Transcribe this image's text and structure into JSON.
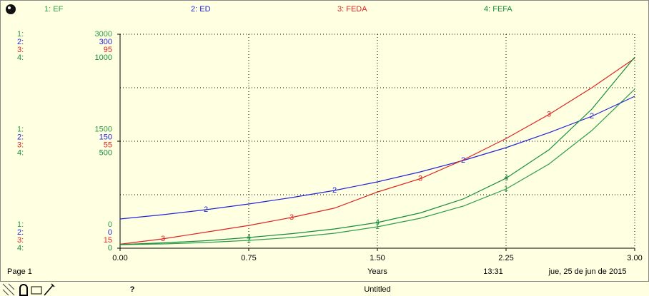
{
  "chart_data": {
    "type": "line",
    "x": [
      0,
      0.25,
      0.5,
      0.75,
      1,
      1.25,
      1.5,
      1.75,
      2,
      2.25,
      2.5,
      2.75,
      3
    ],
    "xlim": [
      0,
      3
    ],
    "xticks": [
      {
        "value": 0,
        "label": "0.00"
      },
      {
        "value": 0.75,
        "label": "0.75"
      },
      {
        "value": 1.5,
        "label": "1.50"
      },
      {
        "value": 2.25,
        "label": "2.25"
      },
      {
        "value": 3,
        "label": "3.00"
      }
    ],
    "xlabel": "Years",
    "page_label": "Page 1",
    "time": "13:31",
    "date": "jue, 25 de jun de 2015",
    "document_title": "Untitled",
    "help_icon": "?",
    "series": [
      {
        "name": "1: EF",
        "axis_key": "1:",
        "marker": "1",
        "color": "#2e9e4a",
        "values": [
          50,
          60,
          80,
          110,
          150,
          210,
          300,
          420,
          590,
          830,
          1180,
          1650,
          2230
        ],
        "ylim": [
          0,
          3000
        ],
        "yticks": [
          0,
          1500,
          3000
        ]
      },
      {
        "name": "2: ED",
        "axis_key": "2:",
        "marker": "2",
        "color": "#2424d8",
        "values": [
          41,
          47,
          54,
          62,
          71,
          81,
          93,
          107,
          123,
          141,
          162,
          185,
          213
        ],
        "ylim": [
          0,
          300
        ],
        "yticks": [
          0,
          150,
          300
        ]
      },
      {
        "name": "3: FEDA",
        "axis_key": "3:",
        "marker": "3",
        "color": "#e02424",
        "values": [
          16.5,
          18.5,
          21,
          23.5,
          26.5,
          30,
          36,
          41,
          48,
          56,
          65,
          75,
          86
        ],
        "ylim": [
          15,
          95
        ],
        "yticks": [
          15,
          55,
          95
        ]
      },
      {
        "name": "4: FEFA",
        "axis_key": "4:",
        "marker": "4",
        "color": "#168c3c",
        "values": [
          17,
          25,
          35,
          50,
          68,
          90,
          120,
          165,
          230,
          327,
          460,
          650,
          893
        ],
        "ylim": [
          0,
          1000
        ],
        "yticks": [
          0,
          500,
          1000
        ]
      }
    ]
  }
}
